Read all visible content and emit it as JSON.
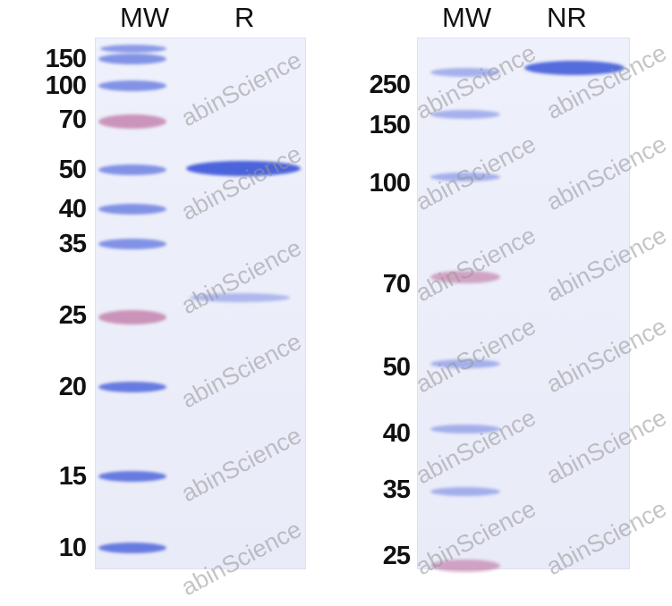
{
  "left_gel": {
    "lanes": [
      "MW",
      "R"
    ],
    "markers": [
      "150",
      "100",
      "70",
      "50",
      "40",
      "35",
      "25",
      "20",
      "15",
      "10"
    ],
    "sample_bands_kDa_approx": [
      50,
      27
    ]
  },
  "right_gel": {
    "lanes": [
      "MW",
      "NR"
    ],
    "markers": [
      "250",
      "150",
      "100",
      "70",
      "50",
      "40",
      "35",
      "25"
    ],
    "sample_bands_kDa_approx": [
      250
    ]
  },
  "watermark": "abinScience",
  "colors": {
    "coomassie": "#3b55d8",
    "prestained": "#b04a86",
    "gel": "#eceefa"
  }
}
